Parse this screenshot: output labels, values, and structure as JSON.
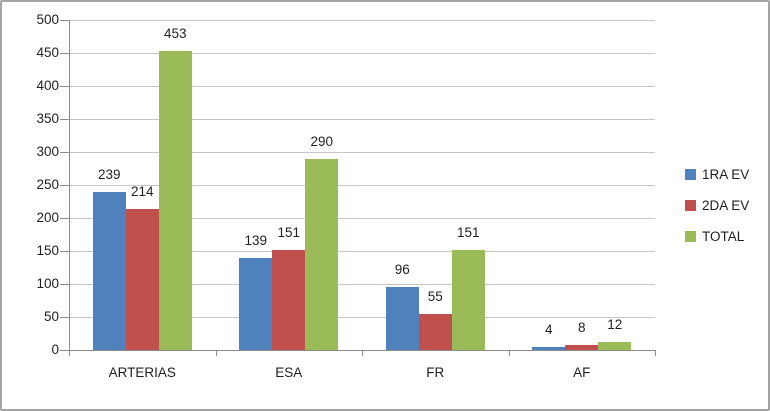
{
  "figure": {
    "background": "#ffffff",
    "border_color": "#a3a3a3"
  },
  "chart_data": {
    "type": "bar",
    "title": "",
    "xlabel": "",
    "ylabel": "",
    "categories": [
      "ARTERIAS",
      "ESA",
      "FR",
      "AF"
    ],
    "series": [
      {
        "name": "1RA EV",
        "color": "#4F81BD",
        "values": [
          239,
          139,
          96,
          4
        ]
      },
      {
        "name": "2DA EV",
        "color": "#C0504D",
        "values": [
          214,
          151,
          55,
          8
        ]
      },
      {
        "name": "TOTAL",
        "color": "#9BBB59",
        "values": [
          453,
          290,
          151,
          12
        ]
      }
    ],
    "ylim": [
      0,
      500
    ],
    "ytick_step": 50,
    "yticks": [
      "0",
      "50",
      "100",
      "150",
      "200",
      "250",
      "300",
      "350",
      "400",
      "450",
      "500"
    ],
    "grid": true,
    "data_labels": true,
    "legend_position": "right",
    "gridline_color": "#c6c6c6",
    "axis_color": "#8c8c8c",
    "text_color": "#1f1f1f"
  }
}
